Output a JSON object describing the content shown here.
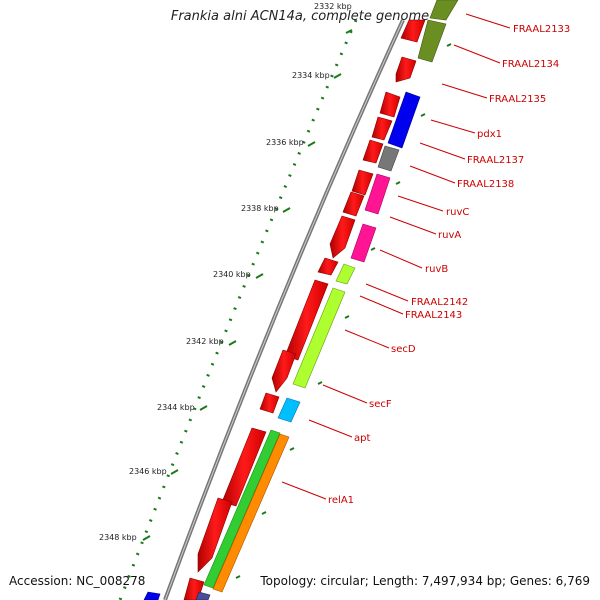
{
  "title": "Frankia alni ACN14a, complete genome",
  "accession": "Accession: NC_008278",
  "topology": "Topology: circular; Length: 7,497,934 bp; Genes: 6,769",
  "ticks": [
    "2332 kbp",
    "2334 kbp",
    "2336 kbp",
    "2338 kbp",
    "2340 kbp",
    "2342 kbp",
    "2344 kbp",
    "2346 kbp",
    "2348 kbp"
  ],
  "gene_labels": [
    "FRAAL2133",
    "FRAAL2134",
    "FRAAL2135",
    "pdx1",
    "FRAAL2137",
    "FRAAL2138",
    "ruvC",
    "ruvA",
    "ruvB",
    "FRAAL2142",
    "FRAAL2143",
    "secD",
    "secF",
    "apt",
    "relA1"
  ],
  "colors": {
    "forward_gene": "#ff0000",
    "backbone": "#888888",
    "tick": "#1a7a1a",
    "label": "#cc0000",
    "olive": "#6b8e23",
    "blue": "#0000ee",
    "gray": "#777777",
    "magenta": "#ff1493",
    "lime": "#adff2f",
    "cyan": "#00bfff",
    "green": "#32cd32",
    "orange": "#ff8c00",
    "navy": "#4b4b9a"
  }
}
